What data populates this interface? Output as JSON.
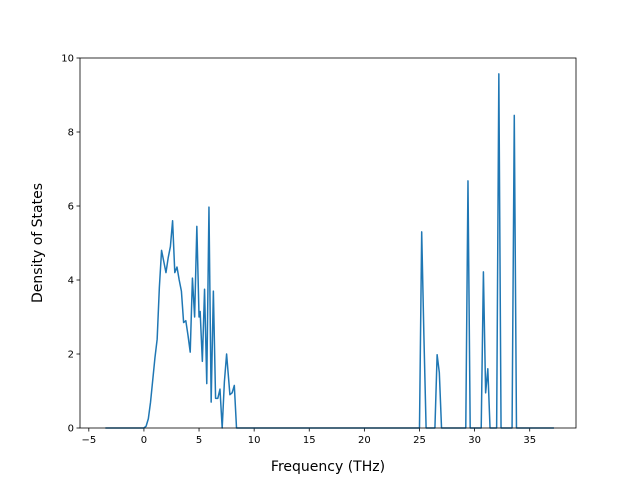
{
  "chart_data": {
    "type": "line",
    "title": "",
    "xlabel": "Frequency (THz)",
    "ylabel": "Density of States",
    "xlim": [
      -5.8,
      39.2
    ],
    "ylim": [
      0,
      10
    ],
    "xticks": [
      -5,
      0,
      5,
      10,
      15,
      20,
      25,
      30,
      35
    ],
    "yticks": [
      0,
      2,
      4,
      6,
      8,
      10
    ],
    "grid": false,
    "line_color": "#1f77b4",
    "series": [
      {
        "x": [
          -3.5,
          0.0,
          0.2,
          0.4,
          0.6,
          0.8,
          1.0,
          1.2,
          1.4,
          1.6,
          1.8,
          2.0,
          2.2,
          2.4,
          2.6,
          2.8,
          3.0,
          3.2,
          3.4,
          3.6,
          3.8,
          4.0,
          4.2,
          4.4,
          4.6,
          4.8,
          5.0,
          5.1,
          5.3,
          5.5,
          5.7,
          5.9,
          6.1,
          6.3,
          6.5,
          6.7,
          6.9,
          7.1,
          7.3,
          7.5,
          7.8,
          8.0,
          8.2,
          8.4,
          8.6,
          8.8,
          9.0,
          25.0,
          25.2,
          25.4,
          25.6,
          26.4,
          26.6,
          26.8,
          27.0,
          29.2,
          29.4,
          29.6,
          30.6,
          30.8,
          31.0,
          31.2,
          31.4,
          31.6,
          32.0,
          32.2,
          32.4,
          33.4,
          33.6,
          33.8,
          37.2
        ],
        "y": [
          0,
          0,
          0.05,
          0.25,
          0.7,
          1.3,
          1.9,
          2.4,
          3.8,
          4.8,
          4.5,
          4.2,
          4.6,
          4.9,
          5.6,
          4.2,
          4.35,
          4.0,
          3.7,
          2.85,
          2.9,
          2.5,
          2.05,
          4.05,
          3.0,
          5.45,
          3.0,
          3.15,
          1.8,
          3.75,
          1.2,
          5.97,
          0.7,
          3.7,
          0.8,
          0.8,
          1.05,
          0,
          1.25,
          2.0,
          0.9,
          0.95,
          1.15,
          0,
          0,
          0,
          0,
          0,
          5.3,
          2.5,
          0,
          0,
          1.98,
          1.5,
          0,
          0,
          6.68,
          0,
          0,
          4.22,
          0.95,
          1.6,
          0,
          0,
          0,
          9.57,
          0,
          0,
          8.45,
          0,
          0
        ]
      }
    ]
  }
}
